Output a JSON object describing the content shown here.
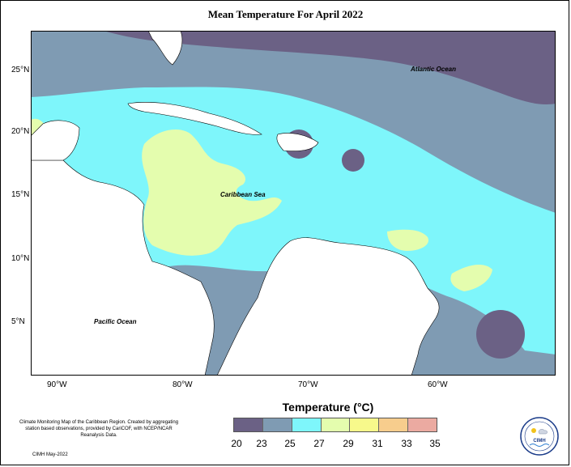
{
  "title": "Mean Temperature For April 2022",
  "latitude_labels": [
    "25°N",
    "20°N",
    "15°N",
    "10°N",
    "5°N"
  ],
  "longitude_labels": [
    "90°W",
    "80°W",
    "70°W",
    "60°W"
  ],
  "ocean_labels": {
    "atlantic": "Atlantic Ocean",
    "caribbean": "Caribbean Sea",
    "pacific": "Pacific Ocean"
  },
  "legend": {
    "title": "Temperature (°C)",
    "labels": [
      "20",
      "23",
      "25",
      "27",
      "29",
      "31",
      "33",
      "35"
    ],
    "colors": [
      "#6b6185",
      "#7f9bb3",
      "#7ef6fb",
      "#e4fdae",
      "#f7f98b",
      "#f7cd8d",
      "#ebaaa1"
    ]
  },
  "footnote": {
    "text": "Climate Monitoring Map of the Caribbean Region. Created by aggregating station based observations, provided by CariCOF, with NCEP/NCAR Reanalysis Data.",
    "date": "CIMH May-2022"
  },
  "logo_text": "CIMH",
  "map_colors": {
    "ocean_deep": "#6b6185",
    "ocean_mid": "#7f9bb3",
    "ocean_warm": "#7ef6fb",
    "ocean_hot": "#e4fdae",
    "land": "#ffffff"
  }
}
